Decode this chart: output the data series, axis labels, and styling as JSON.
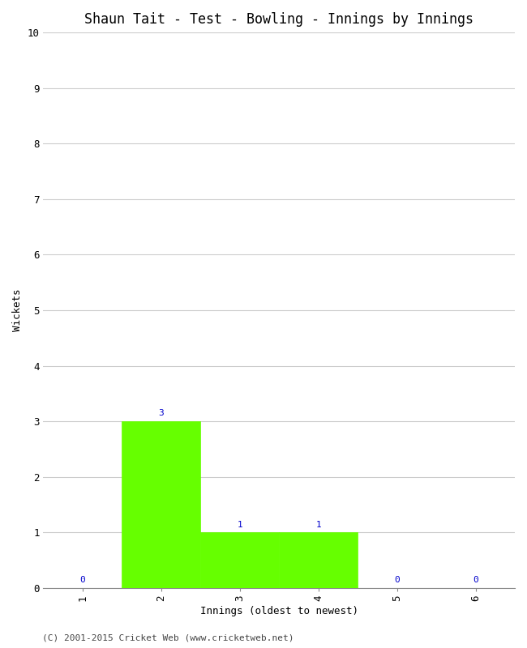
{
  "title": "Shaun Tait - Test - Bowling - Innings by Innings",
  "xlabel": "Innings (oldest to newest)",
  "ylabel": "Wickets",
  "categories": [
    1,
    2,
    3,
    4,
    5,
    6
  ],
  "values": [
    0,
    3,
    1,
    1,
    0,
    0
  ],
  "bar_color": "#66ff00",
  "bar_edge_color": "#66ff00",
  "label_color": "#0000cc",
  "ylim": [
    0,
    10
  ],
  "yticks": [
    0,
    1,
    2,
    3,
    4,
    5,
    6,
    7,
    8,
    9,
    10
  ],
  "xticks": [
    1,
    2,
    3,
    4,
    5,
    6
  ],
  "grid_color": "#cccccc",
  "background_color": "#ffffff",
  "title_fontsize": 12,
  "axis_label_fontsize": 9,
  "tick_fontsize": 9,
  "annotation_fontsize": 8,
  "footer": "(C) 2001-2015 Cricket Web (www.cricketweb.net)",
  "footer_fontsize": 8,
  "footer_color": "#444444",
  "bar_width": 1.0
}
